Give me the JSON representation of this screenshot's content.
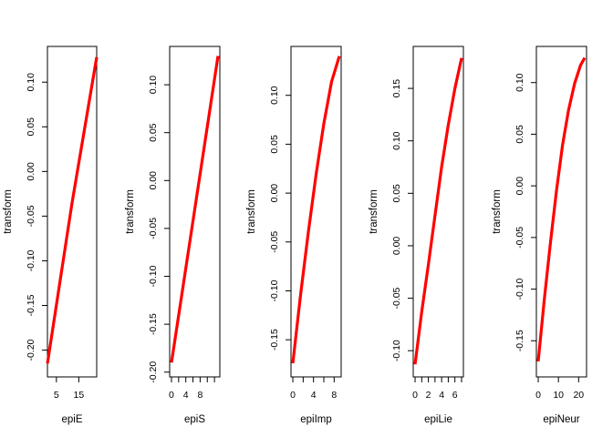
{
  "chart_data": [
    {
      "type": "line",
      "xlabel": "epiE",
      "ylabel": "transform",
      "xlim": [
        1,
        23
      ],
      "ylim": [
        -0.23,
        0.14
      ],
      "xticks": [
        5,
        15
      ],
      "yticks": [
        -0.2,
        -0.15,
        -0.1,
        -0.05,
        0.0,
        0.05,
        0.1
      ],
      "ytick_labels": [
        "-0.20",
        "-0.15",
        "-0.10",
        "-0.05",
        "0.00",
        "0.05",
        "0.10"
      ],
      "series": [
        {
          "color": "#ff0000",
          "x": [
            1,
            12,
            23
          ],
          "y": [
            -0.215,
            -0.035,
            0.128
          ]
        }
      ]
    },
    {
      "type": "line",
      "xlabel": "epiS",
      "ylabel": "transform",
      "xlim": [
        -0.5,
        13.5
      ],
      "ylim": [
        -0.205,
        0.14
      ],
      "xticks": [
        0,
        4,
        8
      ],
      "xminorticks": [
        2,
        6,
        10,
        12
      ],
      "yticks": [
        -0.2,
        -0.15,
        -0.1,
        -0.05,
        0.0,
        0.05,
        0.1
      ],
      "ytick_labels": [
        "-0.20",
        "-0.15",
        "-0.10",
        "-0.05",
        "0.00",
        "0.05",
        "0.10"
      ],
      "series": [
        {
          "color": "#ff0000",
          "x": [
            0,
            6.5,
            13
          ],
          "y": [
            -0.19,
            -0.03,
            0.13
          ]
        }
      ]
    },
    {
      "type": "line",
      "xlabel": "epiImp",
      "ylabel": "transform",
      "xlim": [
        -0.36,
        9.36
      ],
      "ylim": [
        -0.188,
        0.15
      ],
      "xticks": [
        0,
        4,
        8
      ],
      "xminorticks": [
        2,
        6
      ],
      "yticks": [
        -0.15,
        -0.1,
        -0.05,
        0.0,
        0.05,
        0.1
      ],
      "ytick_labels": [
        "-0.15",
        "-0.10",
        "-0.05",
        "0.00",
        "0.05",
        "0.10"
      ],
      "series": [
        {
          "color": "#ff0000",
          "x": [
            0,
            1.5,
            3,
            4.5,
            6,
            7.5,
            9
          ],
          "y": [
            -0.174,
            -0.104,
            -0.04,
            0.019,
            0.071,
            0.114,
            0.14
          ]
        }
      ]
    },
    {
      "type": "line",
      "xlabel": "epiLie",
      "ylabel": "transform",
      "xlim": [
        -0.28,
        7.28
      ],
      "ylim": [
        -0.125,
        0.19
      ],
      "xticks": [
        0,
        2,
        4,
        6
      ],
      "xminorticks": [
        1,
        3,
        5,
        7
      ],
      "yticks": [
        -0.1,
        -0.05,
        0.0,
        0.05,
        0.1,
        0.15
      ],
      "ytick_labels": [
        "-0.10",
        "-0.05",
        "0.00",
        "0.05",
        "0.10",
        "0.15"
      ],
      "series": [
        {
          "color": "#ff0000",
          "x": [
            0,
            1,
            2,
            3,
            4,
            5,
            6,
            7
          ],
          "y": [
            -0.113,
            -0.063,
            -0.018,
            0.029,
            0.075,
            0.115,
            0.15,
            0.179
          ]
        }
      ]
    },
    {
      "type": "line",
      "xlabel": "epiNeur",
      "ylabel": "transform",
      "xlim": [
        -0.92,
        23.92
      ],
      "ylim": [
        -0.185,
        0.135
      ],
      "xticks": [
        0,
        10,
        20
      ],
      "yticks": [
        -0.15,
        -0.1,
        -0.05,
        0.0,
        0.05,
        0.1
      ],
      "ytick_labels": [
        "-0.15",
        "-0.10",
        "-0.05",
        "0.00",
        "0.05",
        "0.10"
      ],
      "series": [
        {
          "color": "#ff0000",
          "x": [
            0,
            3,
            6,
            9,
            12,
            15,
            18,
            21,
            23
          ],
          "y": [
            -0.17,
            -0.11,
            -0.056,
            -0.005,
            0.039,
            0.073,
            0.099,
            0.117,
            0.124
          ]
        }
      ]
    }
  ]
}
